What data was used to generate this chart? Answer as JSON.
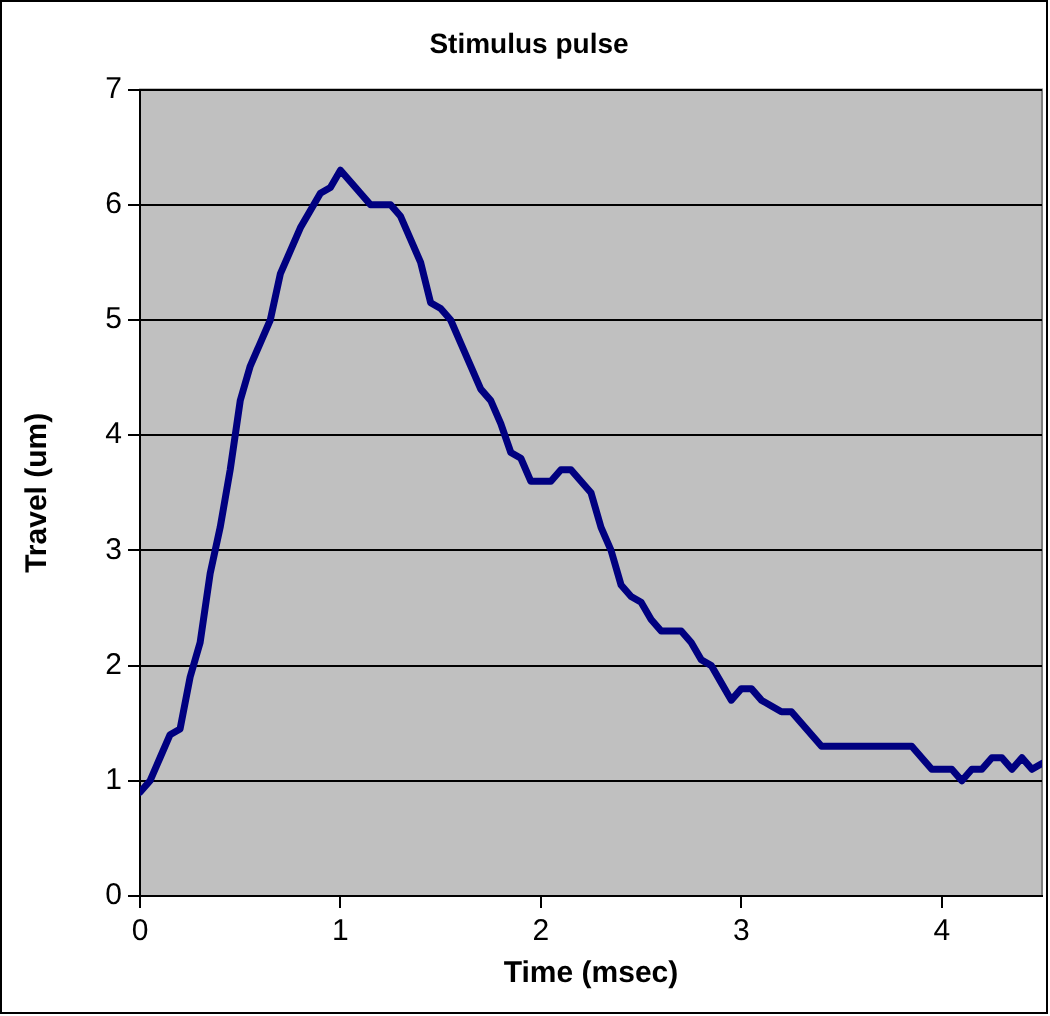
{
  "chart_data": {
    "type": "line",
    "title": "Stimulus pulse",
    "xlabel": "Time (msec)",
    "ylabel": "Travel (um)",
    "x": [
      0,
      0.05,
      0.1,
      0.15,
      0.2,
      0.25,
      0.3,
      0.35,
      0.4,
      0.45,
      0.5,
      0.55,
      0.6,
      0.65,
      0.7,
      0.75,
      0.8,
      0.85,
      0.9,
      0.95,
      1,
      1.05,
      1.1,
      1.15,
      1.2,
      1.25,
      1.3,
      1.35,
      1.4,
      1.45,
      1.5,
      1.55,
      1.6,
      1.65,
      1.7,
      1.75,
      1.8,
      1.85,
      1.9,
      1.95,
      2,
      2.05,
      2.1,
      2.15,
      2.2,
      2.25,
      2.3,
      2.35,
      2.4,
      2.45,
      2.5,
      2.55,
      2.6,
      2.65,
      2.7,
      2.75,
      2.8,
      2.85,
      2.9,
      2.95,
      3,
      3.05,
      3.1,
      3.15,
      3.2,
      3.25,
      3.3,
      3.35,
      3.4,
      3.45,
      3.5,
      3.55,
      3.6,
      3.65,
      3.7,
      3.75,
      3.8,
      3.85,
      3.9,
      3.95,
      4,
      4.05,
      4.1,
      4.15,
      4.2,
      4.25,
      4.3,
      4.35,
      4.4,
      4.45,
      4.5
    ],
    "series": [
      {
        "color": "#000080",
        "values": [
          0.9,
          1.0,
          1.2,
          1.4,
          1.45,
          1.9,
          2.2,
          2.8,
          3.2,
          3.7,
          4.3,
          4.6,
          4.8,
          5.0,
          5.4,
          5.6,
          5.8,
          5.95,
          6.1,
          6.15,
          6.3,
          6.2,
          6.1,
          6.0,
          6.0,
          6.0,
          5.9,
          5.7,
          5.5,
          5.15,
          5.1,
          5.0,
          4.8,
          4.6,
          4.4,
          4.3,
          4.1,
          3.85,
          3.8,
          3.6,
          3.6,
          3.6,
          3.7,
          3.7,
          3.6,
          3.5,
          3.2,
          3.0,
          2.7,
          2.6,
          2.55,
          2.4,
          2.3,
          2.3,
          2.3,
          2.2,
          2.05,
          2.0,
          1.85,
          1.7,
          1.8,
          1.8,
          1.7,
          1.65,
          1.6,
          1.6,
          1.5,
          1.4,
          1.3,
          1.3,
          1.3,
          1.3,
          1.3,
          1.3,
          1.3,
          1.3,
          1.3,
          1.3,
          1.2,
          1.1,
          1.1,
          1.1,
          1.0,
          1.1,
          1.1,
          1.2,
          1.2,
          1.1,
          1.2,
          1.1,
          1.15
        ]
      }
    ],
    "xlim": [
      0,
      4.5
    ],
    "xticks": [
      0,
      1,
      2,
      3,
      4
    ],
    "ylim": [
      0,
      7
    ],
    "yticks": [
      0,
      1,
      2,
      3,
      4,
      5,
      6,
      7
    ],
    "grid": "y",
    "legend": false,
    "marker": "none",
    "line_style": "solid"
  }
}
